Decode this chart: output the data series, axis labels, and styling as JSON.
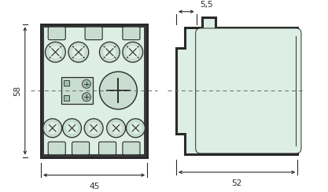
{
  "bg_color": "#ffffff",
  "fill_color": "#ddeee5",
  "fill_color2": "#c8ddd0",
  "line_color": "#2a2a2a",
  "dash_color": "#666666",
  "dark_fill": "#3a3a3a",
  "dim_45_label": "45",
  "dim_58_label": "58",
  "dim_52_label": "52",
  "dim_55_label": "5,5",
  "lw_border": 2.2,
  "lw_dim": 0.8,
  "lw_detail": 0.7
}
